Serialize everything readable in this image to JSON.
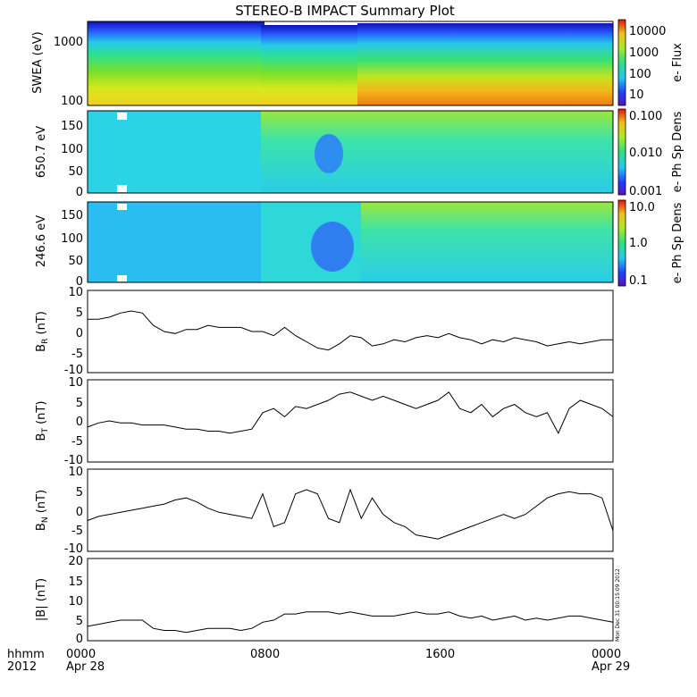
{
  "title": "STEREO-B IMPACT Summary Plot",
  "footer": {
    "hhmm": "hhmm",
    "year": "2012",
    "date_left": "Apr 28",
    "date_right": "Apr 29",
    "stamp": "Mon Dec 31 00:15:09 2012"
  },
  "chart_data": [
    {
      "type": "heatmap",
      "ylabel": "SWEA (eV)",
      "yscale": "log",
      "yticks": [
        "1000",
        "100"
      ],
      "colorbar": {
        "label": "e- Flux",
        "scale": "log",
        "ticks": [
          "10000",
          "1000",
          "100",
          "10"
        ]
      }
    },
    {
      "type": "heatmap",
      "ylabel": "650.7 eV",
      "ylim": [
        0,
        180
      ],
      "yticks": [
        "150",
        "100",
        "50",
        "0"
      ],
      "colorbar": {
        "label": "e- Ph Sp Dens",
        "scale": "log",
        "ticks": [
          "0.100",
          "0.010",
          "0.001"
        ]
      }
    },
    {
      "type": "heatmap",
      "ylabel": "246.6 eV",
      "ylim": [
        0,
        180
      ],
      "yticks": [
        "150",
        "100",
        "50",
        "0"
      ],
      "colorbar": {
        "label": "e- Ph Sp Dens",
        "scale": "log",
        "ticks": [
          "10.0",
          "1.0",
          "0.1"
        ]
      }
    },
    {
      "type": "line",
      "ylabel": "B_R (nT)",
      "ylim": [
        -10,
        10
      ],
      "yticks": [
        "10",
        "5",
        "0",
        "-5",
        "-10"
      ],
      "x_hours": [
        0,
        0.5,
        1,
        1.5,
        2,
        2.5,
        3,
        3.5,
        4,
        4.5,
        5,
        5.5,
        6,
        6.5,
        7,
        7.5,
        8,
        8.5,
        9,
        9.5,
        10,
        10.5,
        11,
        11.5,
        12,
        12.5,
        13,
        13.5,
        14,
        14.5,
        15,
        15.5,
        16,
        16.5,
        17,
        17.5,
        18,
        18.5,
        19,
        19.5,
        20,
        20.5,
        21,
        21.5,
        22,
        22.5,
        23,
        23.5,
        24
      ],
      "values": [
        3,
        3,
        3.5,
        4.5,
        5,
        4.5,
        1.5,
        0,
        -0.5,
        0.5,
        0.5,
        1.5,
        1,
        1,
        1,
        0,
        0,
        -1,
        1,
        -1,
        -2.5,
        -4,
        -4.5,
        -3,
        -1,
        -1.5,
        -3.5,
        -3,
        -2,
        -2.5,
        -1.5,
        -1,
        -1.5,
        -0.5,
        -1.5,
        -2,
        -3,
        -2,
        -2.5,
        -1.5,
        -2,
        -2.5,
        -3.5,
        -3,
        -2.5,
        -3,
        -2.5,
        -2,
        -2
      ]
    },
    {
      "type": "line",
      "ylabel": "B_T (nT)",
      "ylim": [
        -10,
        10
      ],
      "yticks": [
        "10",
        "5",
        "0",
        "-5",
        "-10"
      ],
      "x_hours": [
        0,
        0.5,
        1,
        1.5,
        2,
        2.5,
        3,
        3.5,
        4,
        4.5,
        5,
        5.5,
        6,
        6.5,
        7,
        7.5,
        8,
        8.5,
        9,
        9.5,
        10,
        10.5,
        11,
        11.5,
        12,
        12.5,
        13,
        13.5,
        14,
        14.5,
        15,
        15.5,
        16,
        16.5,
        17,
        17.5,
        18,
        18.5,
        19,
        19.5,
        20,
        20.5,
        21,
        21.5,
        22,
        22.5,
        23,
        23.5,
        24
      ],
      "values": [
        -1.5,
        -0.5,
        0,
        -0.5,
        -0.5,
        -1,
        -1,
        -1,
        -1.5,
        -2,
        -2,
        -2.5,
        -2.5,
        -3,
        -2.5,
        -2,
        2,
        3,
        1,
        3.5,
        3,
        4,
        5,
        6.5,
        7,
        6,
        5,
        6,
        5,
        4,
        3,
        4,
        5,
        7,
        3,
        2,
        4,
        1,
        3,
        4,
        2,
        1,
        2,
        -3,
        3,
        5,
        4,
        3,
        1
      ]
    },
    {
      "type": "line",
      "ylabel": "B_N (nT)",
      "ylim": [
        -10,
        10
      ],
      "yticks": [
        "10",
        "5",
        "0",
        "-5",
        "-10"
      ],
      "x_hours": [
        0,
        0.5,
        1,
        1.5,
        2,
        2.5,
        3,
        3.5,
        4,
        4.5,
        5,
        5.5,
        6,
        6.5,
        7,
        7.5,
        8,
        8.5,
        9,
        9.5,
        10,
        10.5,
        11,
        11.5,
        12,
        12.5,
        13,
        13.5,
        14,
        14.5,
        15,
        15.5,
        16,
        16.5,
        17,
        17.5,
        18,
        18.5,
        19,
        19.5,
        20,
        20.5,
        21,
        21.5,
        22,
        22.5,
        23,
        23.5,
        24
      ],
      "values": [
        -2.5,
        -1.5,
        -1,
        -0.5,
        0,
        0.5,
        1,
        1.5,
        2.5,
        3,
        2,
        0.5,
        -0.5,
        -1,
        -1.5,
        -2,
        4,
        -4,
        -3,
        4,
        5,
        4,
        -2,
        -3,
        5,
        -2,
        3,
        -1,
        -3,
        -4,
        -6,
        -6.5,
        -7,
        -6,
        -5,
        -4,
        -3,
        -2,
        -1,
        -2,
        -1,
        1,
        3,
        4,
        4.5,
        4,
        4,
        3,
        -5
      ]
    },
    {
      "type": "line",
      "ylabel": "|B| (nT)",
      "ylim": [
        0,
        20
      ],
      "yticks": [
        "20",
        "15",
        "10",
        "5",
        "0"
      ],
      "x_hours": [
        0,
        0.5,
        1,
        1.5,
        2,
        2.5,
        3,
        3.5,
        4,
        4.5,
        5,
        5.5,
        6,
        6.5,
        7,
        7.5,
        8,
        8.5,
        9,
        9.5,
        10,
        10.5,
        11,
        11.5,
        12,
        12.5,
        13,
        13.5,
        14,
        14.5,
        15,
        15.5,
        16,
        16.5,
        17,
        17.5,
        18,
        18.5,
        19,
        19.5,
        20,
        20.5,
        21,
        21.5,
        22,
        22.5,
        23,
        23.5,
        24
      ],
      "values": [
        3.5,
        4,
        4.5,
        5,
        5,
        5,
        3,
        2.5,
        2.5,
        2,
        2.5,
        3,
        3,
        3,
        2.5,
        3,
        4.5,
        5,
        6.5,
        6.5,
        7,
        7,
        7,
        6.5,
        7,
        6.5,
        6,
        6,
        6,
        6.5,
        7,
        6.5,
        6.5,
        7,
        6,
        5.5,
        6,
        5,
        5.5,
        6,
        5,
        5.5,
        5,
        5.5,
        6,
        6,
        5.5,
        5,
        4.5
      ]
    }
  ],
  "xaxis": {
    "ticks": [
      "0000",
      "0800",
      "1600",
      "0000"
    ],
    "hours": [
      0,
      8,
      16,
      24
    ]
  }
}
